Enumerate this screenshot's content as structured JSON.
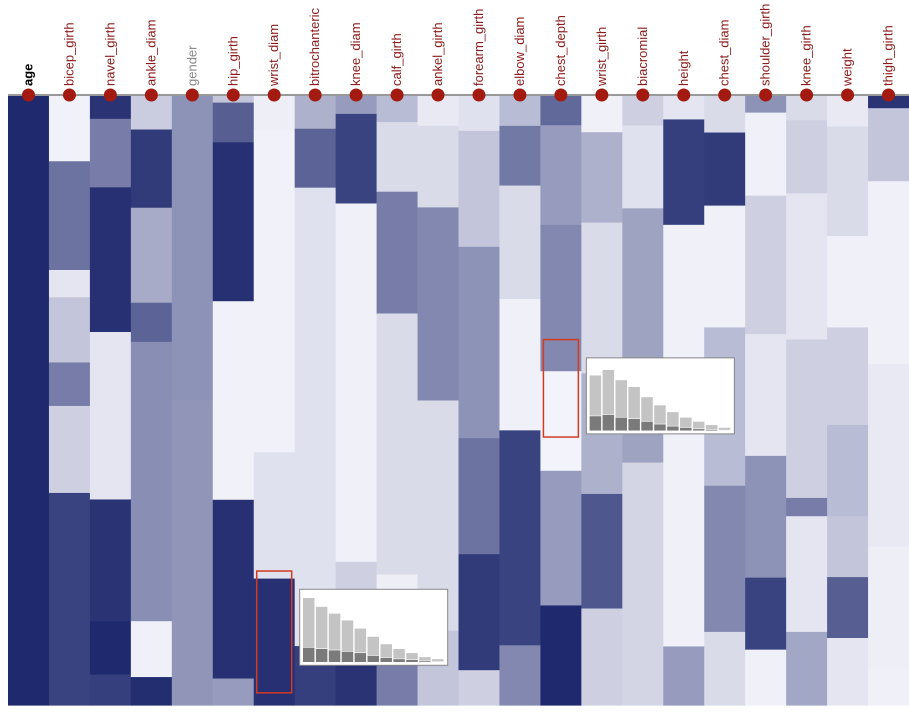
{
  "chart_data": {
    "type": "heatmap",
    "title": "",
    "columns": [
      {
        "label": "age",
        "color": "#000000",
        "bold": true
      },
      {
        "label": "bicep_girth",
        "color": "#8b1a1a"
      },
      {
        "label": "navel_girth",
        "color": "#8b1a1a"
      },
      {
        "label": "ankle_diam",
        "color": "#8b1a1a"
      },
      {
        "label": "gender",
        "color": "#8a8a8a"
      },
      {
        "label": "hip_girth",
        "color": "#8b1a1a"
      },
      {
        "label": "wrist_diam",
        "color": "#8b1a1a"
      },
      {
        "label": "bitrochanteric",
        "color": "#8b1a1a"
      },
      {
        "label": "knee_diam",
        "color": "#8b1a1a"
      },
      {
        "label": "calf_girth",
        "color": "#8b1a1a"
      },
      {
        "label": "ankel_girth",
        "color": "#8b1a1a"
      },
      {
        "label": "forearm_girth",
        "color": "#8b1a1a"
      },
      {
        "label": "elbow_diam",
        "color": "#8b1a1a"
      },
      {
        "label": "chest_depth",
        "color": "#8b1a1a"
      },
      {
        "label": "wrist_girth",
        "color": "#8b1a1a"
      },
      {
        "label": "biacromial",
        "color": "#8b1a1a"
      },
      {
        "label": "height",
        "color": "#8b1a1a"
      },
      {
        "label": "chest_diam",
        "color": "#8b1a1a"
      },
      {
        "label": "shoulder_girth",
        "color": "#8b1a1a"
      },
      {
        "label": "knee_girth",
        "color": "#8b1a1a"
      },
      {
        "label": "weight",
        "color": "#8b1a1a"
      },
      {
        "label": "thigh_girth",
        "color": "#8b1a1a"
      }
    ],
    "value_range": [
      0,
      1
    ],
    "color_scale": [
      "#fafaff",
      "#1f2a6e"
    ],
    "column_segments": [
      [
        [
          1.0,
          0.93
        ]
      ],
      [
        [
          0.04,
          0.12
        ],
        [
          0.65,
          0.2
        ],
        [
          0.1,
          0.05
        ],
        [
          0.25,
          0.12
        ],
        [
          0.6,
          0.08
        ],
        [
          0.2,
          0.16
        ],
        [
          0.88,
          0.39
        ]
      ],
      [
        [
          0.95,
          0.03
        ],
        [
          0.6,
          0.09
        ],
        [
          0.97,
          0.19
        ],
        [
          0.1,
          0.22
        ],
        [
          0.95,
          0.16
        ],
        [
          1.0,
          0.07
        ],
        [
          0.9,
          0.04
        ]
      ],
      [
        [
          0.22,
          0.06
        ],
        [
          0.92,
          0.14
        ],
        [
          0.38,
          0.17
        ],
        [
          0.72,
          0.07
        ],
        [
          0.52,
          0.5
        ],
        [
          0.05,
          0.1
        ],
        [
          0.98,
          0.05
        ]
      ],
      [
        [
          0.5,
          0.5
        ],
        [
          0.48,
          0.5
        ]
      ],
      [
        [
          0.25,
          0.01
        ],
        [
          0.75,
          0.06
        ],
        [
          0.97,
          0.24
        ],
        [
          0.04,
          0.3
        ],
        [
          0.97,
          0.27
        ],
        [
          0.45,
          0.04
        ]
      ],
      [
        [
          0.06,
          0.06
        ],
        [
          0.04,
          0.56
        ],
        [
          0.12,
          0.22
        ],
        [
          0.97,
          0.22
        ]
      ],
      [
        [
          0.35,
          0.05
        ],
        [
          0.72,
          0.09
        ],
        [
          0.12,
          0.7
        ],
        [
          0.9,
          0.09
        ]
      ],
      [
        [
          0.45,
          0.03
        ],
        [
          0.88,
          0.15
        ],
        [
          0.05,
          0.6
        ],
        [
          0.2,
          0.16
        ],
        [
          0.95,
          0.08
        ]
      ],
      [
        [
          0.3,
          0.06
        ],
        [
          0.15,
          0.16
        ],
        [
          0.6,
          0.28
        ],
        [
          0.15,
          0.6
        ],
        [
          0.06,
          0.2
        ],
        [
          0.6,
          0.1
        ]
      ],
      [
        [
          0.08,
          0.04
        ],
        [
          0.15,
          0.11
        ],
        [
          0.55,
          0.26
        ],
        [
          0.15,
          0.31
        ],
        [
          0.25,
          0.1
        ]
      ],
      [
        [
          0.12,
          0.06
        ],
        [
          0.25,
          0.2
        ],
        [
          0.5,
          0.33
        ],
        [
          0.65,
          0.2
        ],
        [
          0.92,
          0.2
        ],
        [
          0.2,
          0.06
        ]
      ],
      [
        [
          0.3,
          0.05
        ],
        [
          0.62,
          0.1
        ],
        [
          0.15,
          0.19
        ],
        [
          0.05,
          0.22
        ],
        [
          0.88,
          0.36
        ],
        [
          0.55,
          0.1
        ]
      ],
      [
        [
          0.7,
          0.05
        ],
        [
          0.45,
          0.17
        ],
        [
          0.55,
          0.25
        ],
        [
          0.03,
          0.17
        ],
        [
          0.45,
          0.23
        ],
        [
          1.0,
          0.17
        ]
      ],
      [
        [
          0.05,
          0.06
        ],
        [
          0.35,
          0.15
        ],
        [
          0.15,
          0.25
        ],
        [
          0.35,
          0.2
        ],
        [
          0.78,
          0.19
        ],
        [
          0.2,
          0.16
        ]
      ],
      [
        [
          0.2,
          0.05
        ],
        [
          0.12,
          0.14
        ],
        [
          0.42,
          0.43
        ],
        [
          0.18,
          0.41
        ]
      ],
      [
        [
          0.1,
          0.04
        ],
        [
          0.9,
          0.18
        ],
        [
          0.05,
          0.72
        ],
        [
          0.45,
          0.1
        ]
      ],
      [
        [
          0.15,
          0.06
        ],
        [
          0.92,
          0.12
        ],
        [
          0.05,
          0.2
        ],
        [
          0.3,
          0.26
        ],
        [
          0.55,
          0.24
        ],
        [
          0.15,
          0.12
        ]
      ],
      [
        [
          0.5,
          0.03
        ],
        [
          0.05,
          0.15
        ],
        [
          0.2,
          0.25
        ],
        [
          0.1,
          0.22
        ],
        [
          0.5,
          0.22
        ],
        [
          0.88,
          0.13
        ],
        [
          0.05,
          0.1
        ]
      ],
      [
        [
          0.15,
          0.04
        ],
        [
          0.2,
          0.12
        ],
        [
          0.1,
          0.24
        ],
        [
          0.2,
          0.26
        ],
        [
          0.6,
          0.03
        ],
        [
          0.1,
          0.19
        ],
        [
          0.4,
          0.12
        ]
      ],
      [
        [
          0.08,
          0.05
        ],
        [
          0.15,
          0.18
        ],
        [
          0.05,
          0.15
        ],
        [
          0.2,
          0.16
        ],
        [
          0.3,
          0.15
        ],
        [
          0.25,
          0.1
        ],
        [
          0.75,
          0.1
        ],
        [
          0.1,
          0.11
        ]
      ],
      [
        [
          0.95,
          0.02
        ],
        [
          0.25,
          0.12
        ],
        [
          0.05,
          0.3
        ],
        [
          0.08,
          0.3
        ],
        [
          0.06,
          0.2
        ],
        [
          0.05,
          0.06
        ]
      ]
    ],
    "highlights": [
      {
        "column": "wrist_diam",
        "from": 0.78,
        "to": 0.98
      },
      {
        "column": "chest_depth",
        "from": 0.4,
        "to": 0.56
      }
    ],
    "histograms": [
      {
        "attached_to": "wrist_diam",
        "bins_total": [
          0.95,
          0.82,
          0.72,
          0.62,
          0.5,
          0.38,
          0.27,
          0.2,
          0.14,
          0.08,
          0.05
        ],
        "bins_selected": [
          0.22,
          0.2,
          0.18,
          0.16,
          0.14,
          0.1,
          0.07,
          0.05,
          0.04,
          0.02,
          0.01
        ]
      },
      {
        "attached_to": "chest_depth",
        "bins_total": [
          0.82,
          0.9,
          0.75,
          0.65,
          0.5,
          0.38,
          0.28,
          0.2,
          0.14,
          0.09,
          0.05
        ],
        "bins_selected": [
          0.22,
          0.24,
          0.2,
          0.18,
          0.14,
          0.1,
          0.07,
          0.05,
          0.03,
          0.02,
          0.01
        ]
      }
    ]
  }
}
